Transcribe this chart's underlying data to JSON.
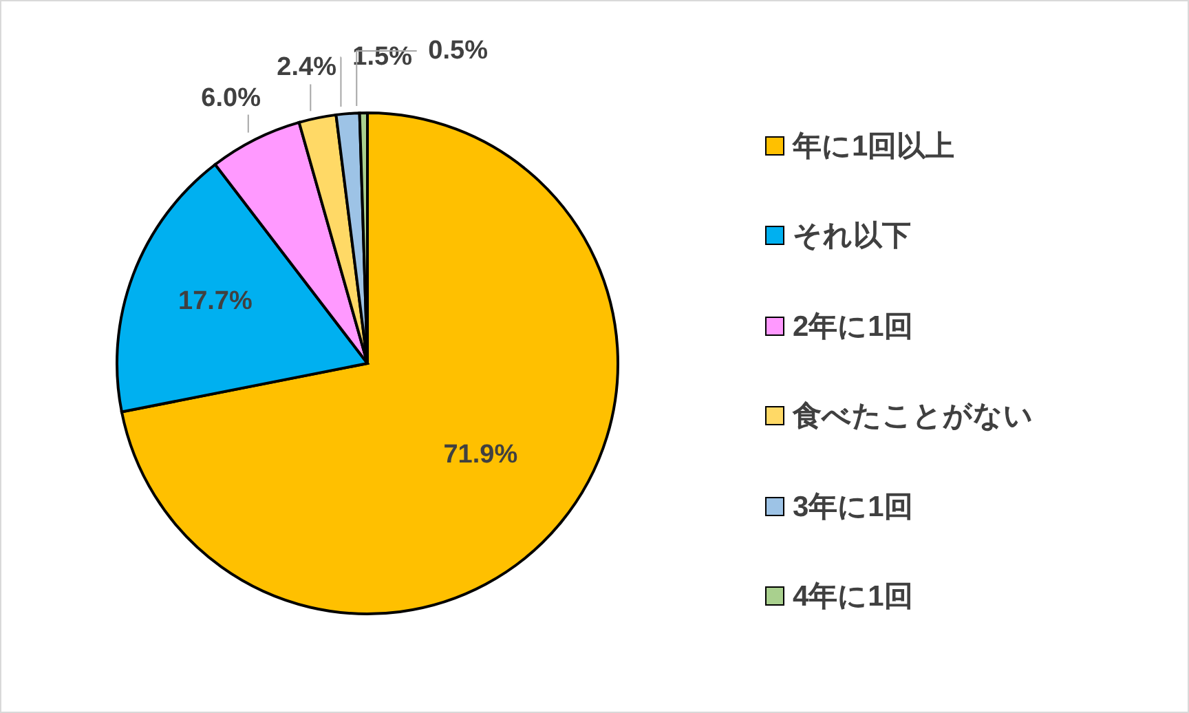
{
  "chart_data": {
    "type": "pie",
    "categories": [
      "年に1回以上",
      "それ以下",
      "2年に1回",
      "食べたことがない",
      "3年に1回",
      "4年に1回"
    ],
    "values": [
      71.9,
      17.7,
      6.0,
      2.4,
      1.5,
      0.5
    ],
    "colors": [
      "#ffc000",
      "#00b0f0",
      "#ff99ff",
      "#ffd966",
      "#9dc3e6",
      "#a9d08e"
    ],
    "value_labels": [
      "71.9%",
      "17.7%",
      "6.0%",
      "2.4%",
      "1.5%",
      "0.5%"
    ],
    "legend": "right"
  }
}
